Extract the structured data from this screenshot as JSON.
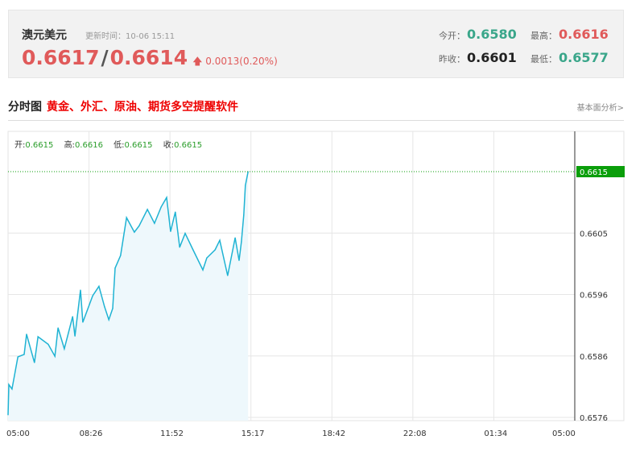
{
  "header": {
    "name": "澳元美元",
    "update_label": "更新时间：",
    "update_time": "10-06 15:11",
    "bid": "0.6617",
    "ask": "0.6614",
    "change": "0.0013(0.20%)",
    "direction_icon": "arrow-up",
    "open_label": "今开：",
    "open": "0.6580",
    "high_label": "最高：",
    "high": "0.6616",
    "prev_close_label": "昨收：",
    "prev_close": "0.6601",
    "low_label": "最低：",
    "low": "0.6577"
  },
  "section": {
    "title": "分时图",
    "promo": "黄金、外汇、原油、期货多空提醒软件",
    "more_link": "基本面分析>"
  },
  "ohlc": {
    "open_label": "开:",
    "open": "0.6615",
    "high_label": "高:",
    "high": "0.6616",
    "low_label": "低:",
    "low": "0.6615",
    "close_label": "收:",
    "close": "0.6615"
  },
  "colors": {
    "line": "#1fb3d3",
    "fill": "#eef8fc",
    "current": "#0a9e0a",
    "up": "#e05a5a",
    "down": "#3aa68a"
  },
  "chart_data": {
    "type": "area",
    "x_ticks": [
      "05:00",
      "08:26",
      "11:52",
      "15:17",
      "18:42",
      "22:08",
      "01:34",
      "05:00"
    ],
    "y_ticks": [
      "0.6615",
      "0.6605",
      "0.6596",
      "0.6586",
      "0.6576"
    ],
    "ylim": [
      0.6576,
      0.6615
    ],
    "current_value": "0.6615",
    "grid": true,
    "points": [
      [
        "05:00",
        0.65764
      ],
      [
        "05:02",
        0.65812
      ],
      [
        "05:10",
        0.65805
      ],
      [
        "05:25",
        0.65856
      ],
      [
        "05:41",
        0.6586
      ],
      [
        "05:47",
        0.65892
      ],
      [
        "06:07",
        0.65847
      ],
      [
        "06:16",
        0.65888
      ],
      [
        "06:42",
        0.65876
      ],
      [
        "06:59",
        0.65857
      ],
      [
        "07:07",
        0.65902
      ],
      [
        "07:23",
        0.65869
      ],
      [
        "07:44",
        0.6592
      ],
      [
        "07:50",
        0.65889
      ],
      [
        "08:04",
        0.65962
      ],
      [
        "08:10",
        0.65911
      ],
      [
        "08:35",
        0.65953
      ],
      [
        "08:51",
        0.65968
      ],
      [
        "09:05",
        0.65936
      ],
      [
        "09:16",
        0.65915
      ],
      [
        "09:26",
        0.65933
      ],
      [
        "09:32",
        0.65997
      ],
      [
        "09:46",
        0.66017
      ],
      [
        "10:01",
        0.66077
      ],
      [
        "10:21",
        0.66054
      ],
      [
        "10:33",
        0.66064
      ],
      [
        "10:54",
        0.6609
      ],
      [
        "11:12",
        0.66068
      ],
      [
        "11:29",
        0.66094
      ],
      [
        "11:43",
        0.66109
      ],
      [
        "11:53",
        0.66055
      ],
      [
        "12:05",
        0.66086
      ],
      [
        "12:16",
        0.6603
      ],
      [
        "12:30",
        0.66052
      ],
      [
        "12:50",
        0.66026
      ],
      [
        "13:15",
        0.65994
      ],
      [
        "13:25",
        0.66013
      ],
      [
        "13:46",
        0.66026
      ],
      [
        "13:58",
        0.66041
      ],
      [
        "14:18",
        0.65985
      ],
      [
        "14:37",
        0.66045
      ],
      [
        "14:47",
        0.66009
      ],
      [
        "14:53",
        0.66039
      ],
      [
        "14:59",
        0.66081
      ],
      [
        "15:03",
        0.66128
      ],
      [
        "15:10",
        0.6615
      ]
    ]
  }
}
